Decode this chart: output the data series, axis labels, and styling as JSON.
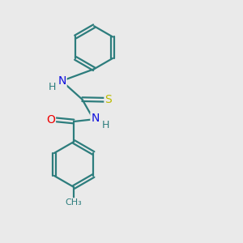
{
  "background_color": "#eaeaea",
  "bond_color": "#2d7d7d",
  "atom_colors": {
    "O": "#ee0000",
    "N": "#1010dd",
    "S": "#bbbb00",
    "H": "#2d7d7d"
  },
  "figsize": [
    3.0,
    3.0
  ],
  "dpi": 100
}
